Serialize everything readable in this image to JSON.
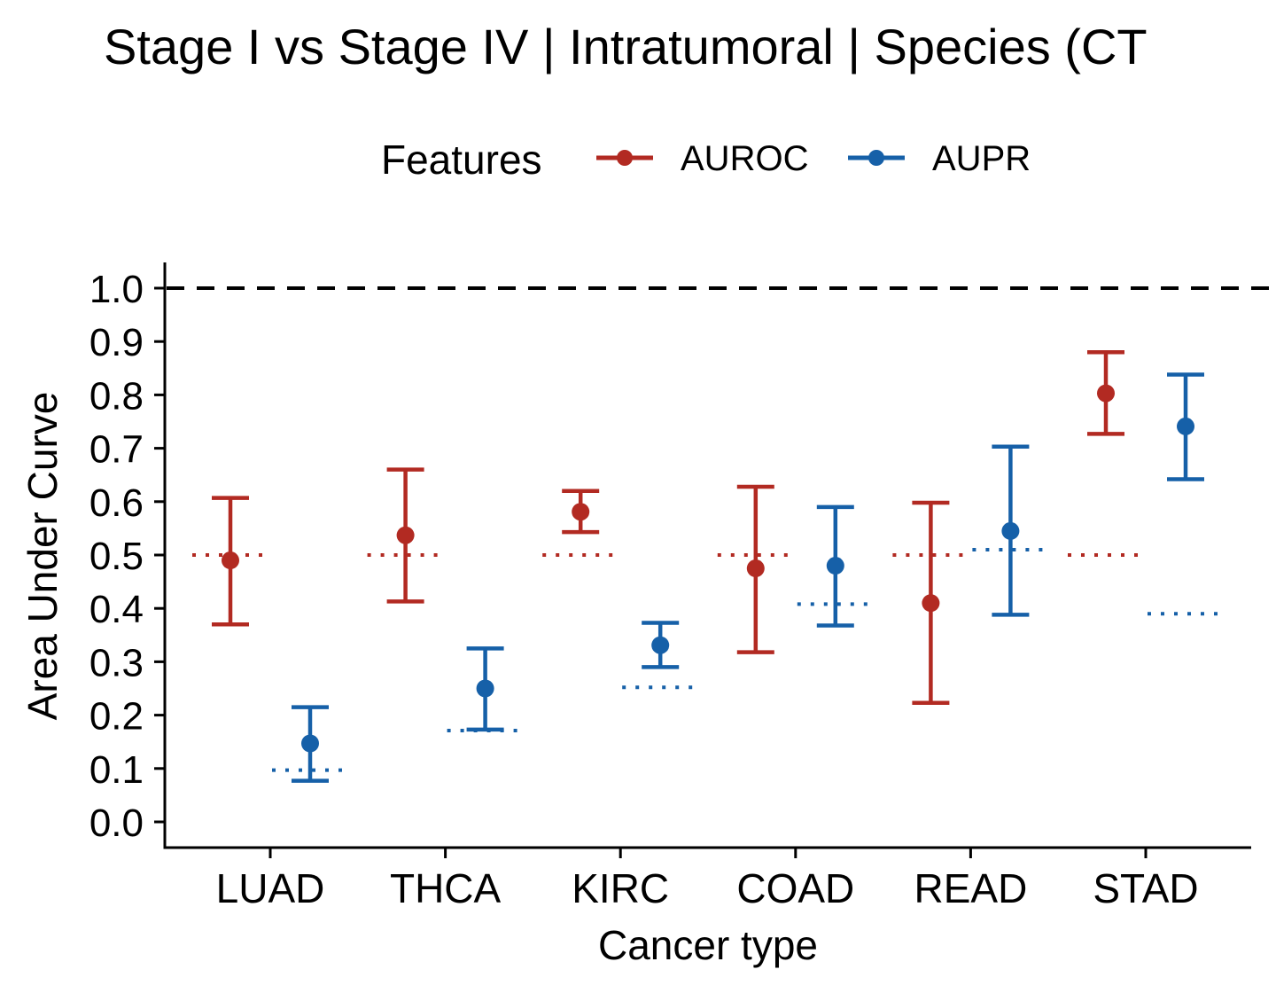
{
  "chart_data": {
    "type": "errorbar",
    "title": "Stage I vs Stage IV | Intratumoral | Species (CT",
    "xlabel": "Cancer type",
    "ylabel": "Area Under Curve",
    "categories": [
      "LUAD",
      "THCA",
      "KIRC",
      "COAD",
      "READ",
      "STAD"
    ],
    "ylim": [
      -0.04,
      1.05
    ],
    "yticks": [
      0.0,
      0.1,
      0.2,
      0.3,
      0.4,
      0.5,
      0.6,
      0.7,
      0.8,
      0.9,
      1.0
    ],
    "ytick_labels": [
      "0.0",
      "0.1",
      "0.2",
      "0.3",
      "0.4",
      "0.5",
      "0.6",
      "0.7",
      "0.8",
      "0.9",
      "1.0"
    ],
    "reference_line": 1.0,
    "grid": false,
    "legend": {
      "title": "Features",
      "position": "top"
    },
    "series": [
      {
        "name": "AUROC",
        "color": "#b22a22",
        "mean": [
          0.49,
          0.537,
          0.581,
          0.475,
          0.41,
          0.803
        ],
        "lower": [
          0.37,
          0.413,
          0.543,
          0.318,
          0.223,
          0.727
        ],
        "upper": [
          0.607,
          0.66,
          0.62,
          0.628,
          0.598,
          0.88
        ],
        "baseline": [
          0.5,
          0.5,
          0.5,
          0.5,
          0.5,
          0.5
        ]
      },
      {
        "name": "AUPR",
        "color": "#1660a8",
        "mean": [
          0.147,
          0.25,
          0.331,
          0.48,
          0.545,
          0.741
        ],
        "lower": [
          0.077,
          0.173,
          0.29,
          0.368,
          0.388,
          0.642
        ],
        "upper": [
          0.215,
          0.325,
          0.373,
          0.59,
          0.703,
          0.838
        ],
        "baseline": [
          0.097,
          0.171,
          0.252,
          0.408,
          0.51,
          0.39
        ]
      }
    ]
  }
}
